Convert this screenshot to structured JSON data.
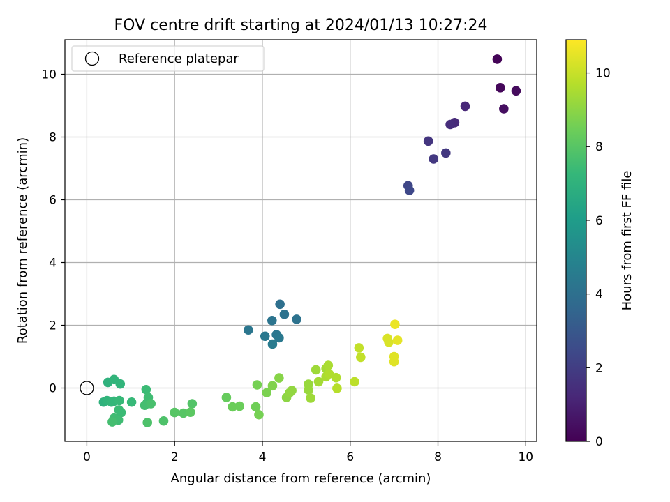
{
  "chart_data": {
    "type": "scatter",
    "title": "FOV centre drift starting at 2024/01/13 10:27:24",
    "xlabel": "Angular distance from reference (arcmin)",
    "ylabel": "Rotation from reference (arcmin)",
    "xlim": [
      -0.5,
      10.25
    ],
    "ylim": [
      -1.7,
      11.1
    ],
    "xticks": [
      0,
      2,
      4,
      6,
      8,
      10
    ],
    "yticks": [
      0,
      2,
      4,
      6,
      8,
      10
    ],
    "grid": true,
    "legend": {
      "placement": "top-left",
      "entries": [
        "Reference platepar"
      ]
    },
    "reference_point": {
      "x": 0,
      "y": 0,
      "marker": "open circle"
    },
    "colorbar": {
      "label": "Hours from first FF file",
      "range": [
        0,
        10.9
      ],
      "ticks": [
        0,
        2,
        4,
        6,
        8,
        10
      ],
      "colormap": "viridis",
      "stops": [
        "#440154",
        "#482878",
        "#3e4989",
        "#31688e",
        "#26828e",
        "#1f9e89",
        "#35b779",
        "#6ece58",
        "#b5de2b",
        "#fde725"
      ]
    },
    "points": [
      {
        "x": 9.35,
        "y": 10.48,
        "hours": 0.1
      },
      {
        "x": 9.42,
        "y": 9.57,
        "hours": 0.2
      },
      {
        "x": 9.78,
        "y": 9.47,
        "hours": 0.3
      },
      {
        "x": 9.5,
        "y": 8.9,
        "hours": 0.4
      },
      {
        "x": 8.62,
        "y": 8.98,
        "hours": 1.2
      },
      {
        "x": 8.38,
        "y": 8.46,
        "hours": 1.3
      },
      {
        "x": 8.28,
        "y": 8.4,
        "hours": 1.4
      },
      {
        "x": 7.78,
        "y": 7.87,
        "hours": 1.7
      },
      {
        "x": 7.9,
        "y": 7.3,
        "hours": 1.8
      },
      {
        "x": 8.18,
        "y": 7.49,
        "hours": 1.8
      },
      {
        "x": 7.32,
        "y": 6.45,
        "hours": 2.3
      },
      {
        "x": 7.35,
        "y": 6.3,
        "hours": 2.4
      },
      {
        "x": 4.4,
        "y": 2.67,
        "hours": 4.0
      },
      {
        "x": 4.5,
        "y": 2.35,
        "hours": 4.1
      },
      {
        "x": 4.78,
        "y": 2.19,
        "hours": 4.1
      },
      {
        "x": 4.22,
        "y": 2.15,
        "hours": 4.2
      },
      {
        "x": 3.68,
        "y": 1.85,
        "hours": 4.3
      },
      {
        "x": 4.32,
        "y": 1.7,
        "hours": 4.3
      },
      {
        "x": 4.06,
        "y": 1.65,
        "hours": 4.4
      },
      {
        "x": 4.38,
        "y": 1.6,
        "hours": 4.4
      },
      {
        "x": 4.23,
        "y": 1.4,
        "hours": 4.5
      },
      {
        "x": 0.48,
        "y": 0.18,
        "hours": 7.0
      },
      {
        "x": 0.62,
        "y": 0.27,
        "hours": 7.1
      },
      {
        "x": 0.76,
        "y": 0.13,
        "hours": 7.1
      },
      {
        "x": 0.38,
        "y": -0.45,
        "hours": 7.0
      },
      {
        "x": 0.46,
        "y": -0.4,
        "hours": 7.1
      },
      {
        "x": 0.56,
        "y": -0.45,
        "hours": 7.2
      },
      {
        "x": 0.62,
        "y": -0.42,
        "hours": 7.2
      },
      {
        "x": 0.74,
        "y": -0.4,
        "hours": 7.3
      },
      {
        "x": 1.02,
        "y": -0.45,
        "hours": 7.3
      },
      {
        "x": 0.73,
        "y": -0.7,
        "hours": 7.4
      },
      {
        "x": 0.78,
        "y": -0.78,
        "hours": 7.4
      },
      {
        "x": 0.62,
        "y": -0.96,
        "hours": 7.5
      },
      {
        "x": 0.72,
        "y": -1.02,
        "hours": 7.5
      },
      {
        "x": 0.58,
        "y": -1.08,
        "hours": 7.6
      },
      {
        "x": 1.35,
        "y": -0.05,
        "hours": 7.4
      },
      {
        "x": 1.4,
        "y": -0.3,
        "hours": 7.5
      },
      {
        "x": 1.38,
        "y": -0.45,
        "hours": 7.5
      },
      {
        "x": 1.32,
        "y": -0.55,
        "hours": 7.6
      },
      {
        "x": 1.46,
        "y": -0.5,
        "hours": 7.7
      },
      {
        "x": 1.38,
        "y": -1.1,
        "hours": 7.8
      },
      {
        "x": 1.75,
        "y": -1.05,
        "hours": 7.8
      },
      {
        "x": 2.4,
        "y": -0.5,
        "hours": 7.9
      },
      {
        "x": 2.0,
        "y": -0.78,
        "hours": 8.0
      },
      {
        "x": 2.2,
        "y": -0.8,
        "hours": 8.0
      },
      {
        "x": 2.36,
        "y": -0.77,
        "hours": 8.1
      },
      {
        "x": 3.18,
        "y": -0.3,
        "hours": 8.3
      },
      {
        "x": 3.32,
        "y": -0.6,
        "hours": 8.4
      },
      {
        "x": 3.48,
        "y": -0.58,
        "hours": 8.4
      },
      {
        "x": 3.85,
        "y": -0.6,
        "hours": 8.5
      },
      {
        "x": 3.92,
        "y": -0.85,
        "hours": 8.6
      },
      {
        "x": 3.88,
        "y": 0.1,
        "hours": 8.6
      },
      {
        "x": 4.1,
        "y": -0.15,
        "hours": 8.7
      },
      {
        "x": 4.23,
        "y": 0.07,
        "hours": 8.8
      },
      {
        "x": 4.38,
        "y": 0.32,
        "hours": 8.9
      },
      {
        "x": 4.55,
        "y": -0.3,
        "hours": 9.0
      },
      {
        "x": 4.62,
        "y": -0.15,
        "hours": 9.1
      },
      {
        "x": 4.67,
        "y": -0.08,
        "hours": 9.1
      },
      {
        "x": 5.05,
        "y": 0.12,
        "hours": 9.2
      },
      {
        "x": 5.05,
        "y": -0.06,
        "hours": 9.2
      },
      {
        "x": 5.1,
        "y": -0.32,
        "hours": 9.3
      },
      {
        "x": 5.22,
        "y": 0.58,
        "hours": 9.3
      },
      {
        "x": 5.28,
        "y": 0.2,
        "hours": 9.4
      },
      {
        "x": 5.45,
        "y": 0.62,
        "hours": 9.4
      },
      {
        "x": 5.5,
        "y": 0.72,
        "hours": 9.5
      },
      {
        "x": 5.45,
        "y": 0.36,
        "hours": 9.5
      },
      {
        "x": 5.52,
        "y": 0.45,
        "hours": 9.6
      },
      {
        "x": 5.68,
        "y": 0.33,
        "hours": 9.6
      },
      {
        "x": 5.7,
        "y": -0.01,
        "hours": 9.7
      },
      {
        "x": 6.1,
        "y": 0.2,
        "hours": 9.8
      },
      {
        "x": 6.2,
        "y": 1.28,
        "hours": 9.9
      },
      {
        "x": 6.24,
        "y": 0.98,
        "hours": 9.9
      },
      {
        "x": 6.85,
        "y": 1.58,
        "hours": 10.3
      },
      {
        "x": 6.88,
        "y": 1.46,
        "hours": 10.3
      },
      {
        "x": 7.02,
        "y": 2.03,
        "hours": 10.6
      },
      {
        "x": 7.08,
        "y": 1.52,
        "hours": 10.5
      },
      {
        "x": 7.0,
        "y": 1.0,
        "hours": 10.4
      },
      {
        "x": 7.0,
        "y": 0.84,
        "hours": 10.4
      }
    ]
  }
}
